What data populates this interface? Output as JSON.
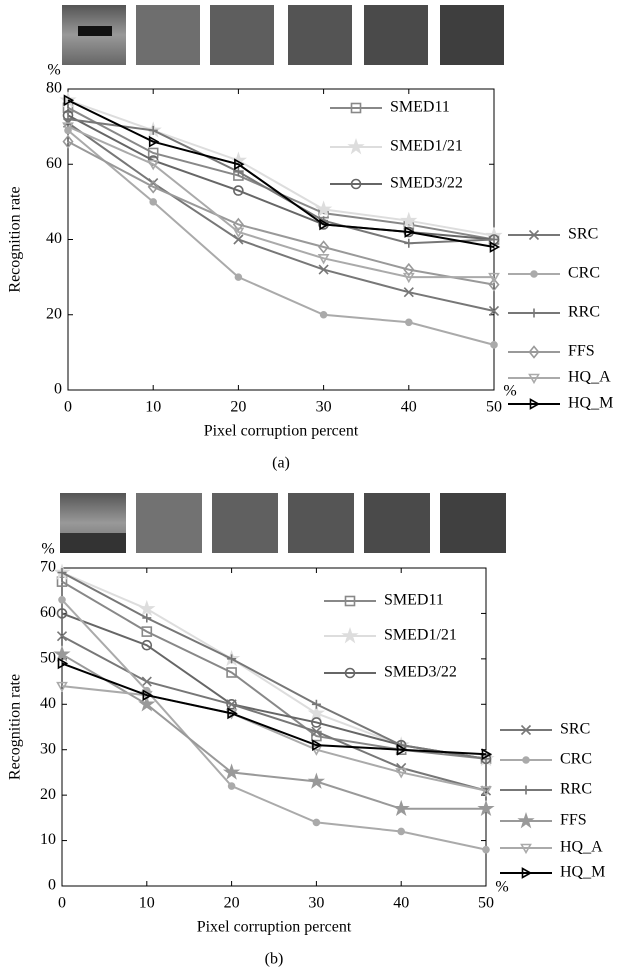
{
  "chart_data": [
    {
      "type": "line",
      "subtitle": "(a)",
      "x_label": "Pixel corruption percent",
      "y_label": "Recognition rate",
      "y_unit": "%",
      "x_unit": "%",
      "x": [
        0,
        10,
        20,
        30,
        40,
        50
      ],
      "xlim": [
        0,
        50
      ],
      "xticks": [
        0,
        10,
        20,
        30,
        40,
        50
      ],
      "ylim": [
        0,
        80
      ],
      "yticks": [
        0,
        20,
        40,
        60,
        80
      ],
      "grid": false,
      "series": [
        {
          "name": "SMED11",
          "color": "#888888",
          "marker": "square",
          "values": [
            75,
            63,
            57,
            47,
            44,
            40
          ]
        },
        {
          "name": "SMED1/21",
          "color": "#dddddd",
          "marker": "star",
          "values": [
            77,
            69,
            61,
            48,
            45,
            41
          ]
        },
        {
          "name": "SMED3/22",
          "color": "#666666",
          "marker": "circle",
          "values": [
            73,
            61,
            53,
            44,
            42,
            40
          ]
        },
        {
          "name": "SRC",
          "color": "#777777",
          "marker": "x",
          "values": [
            71,
            55,
            40,
            32,
            26,
            21
          ]
        },
        {
          "name": "CRC",
          "color": "#aaaaaa",
          "marker": "dot",
          "values": [
            69,
            50,
            30,
            20,
            18,
            12
          ]
        },
        {
          "name": "RRC",
          "color": "#777777",
          "marker": "plus",
          "values": [
            72,
            69,
            58,
            45,
            39,
            40
          ]
        },
        {
          "name": "FFS",
          "color": "#999999",
          "marker": "diamond",
          "values": [
            66,
            54,
            44,
            38,
            32,
            28
          ]
        },
        {
          "name": "HQ_A",
          "color": "#aaaaaa",
          "marker": "triangle-down",
          "values": [
            70,
            60,
            42,
            35,
            30,
            30
          ]
        },
        {
          "name": "HQ_M",
          "color": "#000000",
          "marker": "triangle-right",
          "values": [
            77,
            66,
            60,
            44,
            42,
            38
          ]
        }
      ]
    },
    {
      "type": "line",
      "subtitle": "(b)",
      "x_label": "Pixel corruption percent",
      "y_label": "Recognition rate",
      "y_unit": "%",
      "x_unit": "%",
      "x": [
        0,
        10,
        20,
        30,
        40,
        50
      ],
      "xlim": [
        0,
        50
      ],
      "xticks": [
        0,
        10,
        20,
        30,
        40,
        50
      ],
      "ylim": [
        0,
        70
      ],
      "yticks": [
        0,
        10,
        20,
        30,
        40,
        50,
        60,
        70
      ],
      "grid": false,
      "series": [
        {
          "name": "SMED11",
          "color": "#888888",
          "marker": "square",
          "values": [
            67,
            56,
            47,
            33,
            30,
            28
          ]
        },
        {
          "name": "SMED1/21",
          "color": "#dddddd",
          "marker": "star",
          "values": [
            69,
            61,
            50,
            38,
            31,
            28
          ]
        },
        {
          "name": "SMED3/22",
          "color": "#666666",
          "marker": "circle",
          "values": [
            60,
            53,
            40,
            36,
            31,
            28
          ]
        },
        {
          "name": "SRC",
          "color": "#777777",
          "marker": "x",
          "values": [
            55,
            45,
            40,
            34,
            26,
            21
          ]
        },
        {
          "name": "CRC",
          "color": "#aaaaaa",
          "marker": "dot",
          "values": [
            63,
            43,
            22,
            14,
            12,
            8
          ]
        },
        {
          "name": "RRC",
          "color": "#777777",
          "marker": "plus",
          "values": [
            69,
            59,
            50,
            40,
            31,
            28
          ]
        },
        {
          "name": "FFS",
          "color": "#999999",
          "marker": "star",
          "values": [
            51,
            40,
            25,
            23,
            17,
            17
          ]
        },
        {
          "name": "HQ_A",
          "color": "#aaaaaa",
          "marker": "triangle-down",
          "values": [
            44,
            42,
            38,
            30,
            25,
            21
          ]
        },
        {
          "name": "HQ_M",
          "color": "#000000",
          "marker": "triangle-right",
          "values": [
            49,
            42,
            38,
            31,
            30,
            29
          ]
        }
      ]
    }
  ]
}
